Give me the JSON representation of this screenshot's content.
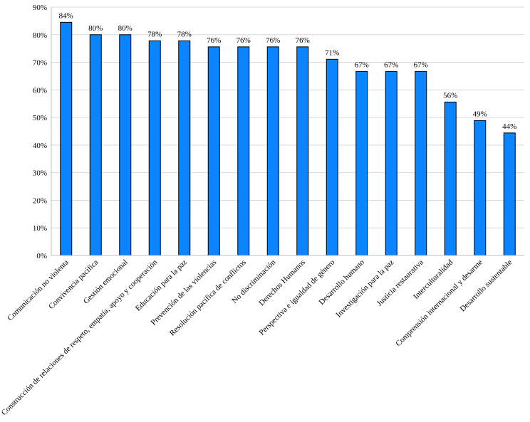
{
  "chart_data": {
    "type": "bar",
    "categories": [
      "Comunicación no violenta",
      "Convivencia pacífica",
      "Gestión emocional",
      "Construcción de relaciones de respeto, empatía, apoyo y cooperación",
      "Educación para la paz",
      "Prevención de las violencias",
      "Resolución pacífica de conflictos",
      "No discriminación",
      "Derechos Humanos",
      "Perspectiva e igualdad de género",
      "Desarrollo humano",
      "Investigación para la paz",
      "Justicia restaurativa",
      "Interculturalidad",
      "Comprensión internacional y desarme",
      "Desarrollo sustentable"
    ],
    "values": [
      84.5,
      80,
      80,
      77.8,
      77.8,
      75.6,
      75.6,
      75.6,
      75.6,
      71.1,
      66.7,
      66.7,
      66.7,
      55.6,
      48.9,
      44.4
    ],
    "data_labels": [
      "84%",
      "80%",
      "80%",
      "78%",
      "78%",
      "76%",
      "76%",
      "76%",
      "76%",
      "71%",
      "67%",
      "67%",
      "67%",
      "56%",
      "49%",
      "44%"
    ],
    "y_ticks": [
      "0%",
      "10%",
      "20%",
      "30%",
      "40%",
      "50%",
      "60%",
      "70%",
      "80%",
      "90%"
    ],
    "ylim": [
      0,
      90
    ],
    "grid": true,
    "bar_color": "#0a84ff",
    "title": "",
    "xlabel": "",
    "ylabel": ""
  }
}
